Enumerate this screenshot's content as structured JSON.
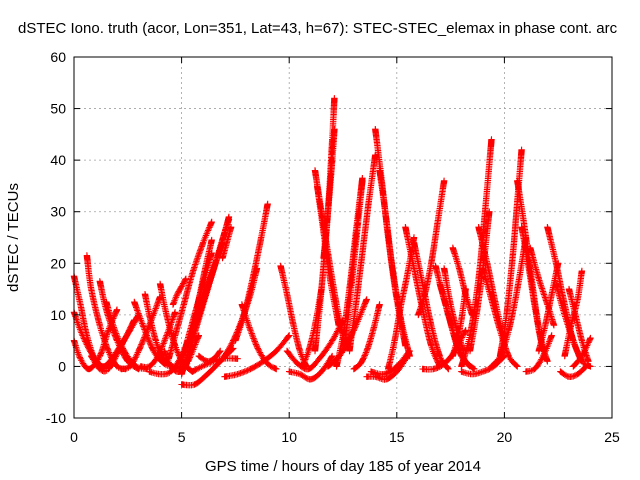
{
  "chart_data": {
    "type": "scatter",
    "title": "dSTEC Iono. truth (acor, Lon=351, Lat=43, h=67): STEC-STEC_elemax in phase cont. arc",
    "xlabel": "GPS time / hours of day 185 of year 2014",
    "ylabel": "dSTEC  / TECUs",
    "xlim": [
      0,
      25
    ],
    "ylim": [
      -10,
      60
    ],
    "xticks": [
      0,
      5,
      10,
      15,
      20,
      25
    ],
    "yticks": [
      -10,
      0,
      10,
      20,
      30,
      40,
      50,
      60
    ],
    "grid": true,
    "legend": "none",
    "marker": "+",
    "color": "#ff0000",
    "series": [
      {
        "x": [
          0.0,
          0.3,
          0.6,
          1.0,
          1.4
        ],
        "y": [
          17.5,
          12,
          6,
          1,
          -0.5
        ]
      },
      {
        "x": [
          0.0,
          0.4,
          0.9,
          1.4,
          2.0,
          2.6,
          3.0
        ],
        "y": [
          10.5,
          6,
          2,
          0,
          3,
          7,
          10
        ]
      },
      {
        "x": [
          0.0,
          0.3,
          0.7,
          1.2,
          1.6,
          2.0
        ],
        "y": [
          5,
          1.5,
          -0.5,
          2,
          7,
          11
        ]
      },
      {
        "x": [
          0.6,
          0.8,
          1.2,
          1.6,
          2.0,
          2.4
        ],
        "y": [
          21.5,
          15,
          8,
          3,
          0,
          -0.5
        ]
      },
      {
        "x": [
          0.8,
          1.2,
          1.6,
          2.2,
          2.8
        ],
        "y": [
          2,
          -0.5,
          -0.5,
          4,
          9
        ]
      },
      {
        "x": [
          1.2,
          1.5,
          2.0,
          2.5,
          3.0
        ],
        "y": [
          16.5,
          11,
          5,
          1,
          -0.5
        ]
      },
      {
        "x": [
          1.5,
          1.9,
          2.4,
          2.9,
          3.4
        ],
        "y": [
          12.5,
          7,
          2.5,
          0,
          -0.5
        ]
      },
      {
        "x": [
          2.2,
          2.6,
          3.0,
          3.5,
          4.0
        ],
        "y": [
          -0.5,
          0,
          3,
          8,
          13.5
        ]
      },
      {
        "x": [
          2.8,
          3.2,
          3.7,
          4.2,
          4.6
        ],
        "y": [
          12.5,
          8,
          3,
          0.5,
          0
        ]
      },
      {
        "x": [
          3.1,
          3.5,
          3.9,
          4.3,
          4.7
        ],
        "y": [
          0,
          0,
          2,
          6,
          10.5
        ]
      },
      {
        "x": [
          3.3,
          3.5,
          3.8,
          4.1,
          4.4
        ],
        "y": [
          14,
          10,
          5,
          2,
          0.5
        ]
      },
      {
        "x": [
          3.5,
          4.0,
          4.5,
          5.0,
          5.3
        ],
        "y": [
          -1,
          -1.5,
          -1,
          2,
          5
        ]
      },
      {
        "x": [
          4.0,
          4.3,
          4.7,
          5.1,
          5.5
        ],
        "y": [
          16,
          10,
          4,
          0.5,
          -1
        ]
      },
      {
        "x": [
          4.2,
          4.5,
          4.9,
          5.3,
          5.8
        ],
        "y": [
          3,
          0,
          -1,
          1,
          6
        ]
      },
      {
        "x": [
          4.4,
          4.7,
          5.1,
          5.5,
          6.0,
          6.4
        ],
        "y": [
          1.5,
          6,
          12,
          18,
          24,
          28
        ]
      },
      {
        "x": [
          4.6,
          4.8,
          5.0,
          5.2
        ],
        "y": [
          12,
          14,
          15.5,
          17
        ]
      },
      {
        "x": [
          4.9,
          5.2,
          5.6,
          6.0,
          6.4
        ],
        "y": [
          -0.5,
          4,
          10,
          16,
          22
        ]
      },
      {
        "x": [
          5.0,
          5.6,
          6.2,
          6.8,
          7.4
        ],
        "y": [
          -3.5,
          -3.5,
          -1.5,
          1,
          3.5
        ]
      },
      {
        "x": [
          5.0,
          5.5,
          6.0,
          6.5,
          7.0,
          7.2
        ],
        "y": [
          -1.5,
          5,
          12,
          19,
          26,
          28.5
        ]
      },
      {
        "x": [
          5.2,
          5.6,
          6.2,
          6.8,
          7.2
        ],
        "y": [
          0,
          7,
          15,
          23,
          29
        ]
      },
      {
        "x": [
          5.4,
          5.8,
          6.1,
          6.4
        ],
        "y": [
          5,
          13,
          19,
          24.5
        ]
      },
      {
        "x": [
          5.6,
          6.0,
          6.4,
          6.9
        ],
        "y": [
          8,
          13,
          18,
          24
        ]
      },
      {
        "x": [
          5.8,
          6.2,
          6.5,
          6.8
        ],
        "y": [
          2,
          1,
          1.5,
          3
        ]
      },
      {
        "x": [
          5.5,
          6.2,
          6.9,
          7.6
        ],
        "y": [
          -1,
          0.5,
          1.5,
          1.5
        ]
      },
      {
        "x": [
          7.8,
          8.2,
          8.6,
          9.0,
          9.4
        ],
        "y": [
          12,
          7,
          3,
          0.5,
          -0.5
        ]
      },
      {
        "x": [
          7.0,
          7.6,
          8.2,
          8.8,
          9.4,
          10.0
        ],
        "y": [
          -2,
          -1.5,
          -0.5,
          1,
          3,
          6
        ]
      },
      {
        "x": [
          7.0,
          7.4,
          7.8,
          8.2,
          8.5
        ],
        "y": [
          2,
          5,
          9,
          14,
          19
        ]
      },
      {
        "x": [
          7.5,
          7.9,
          8.3,
          8.7,
          9.0
        ],
        "y": [
          5,
          10,
          17,
          25,
          31.5
        ]
      },
      {
        "x": [
          6.9,
          7.1,
          7.3
        ],
        "y": [
          21,
          24,
          27
        ]
      },
      {
        "x": [
          9.6,
          9.9,
          10.2,
          10.5,
          10.8
        ],
        "y": [
          19.5,
          14,
          8,
          3,
          0
        ]
      },
      {
        "x": [
          10.0,
          10.5,
          11.0,
          11.5,
          12.0
        ],
        "y": [
          -1,
          -1.5,
          -2.5,
          -1,
          2
        ]
      },
      {
        "x": [
          9.9,
          10.4,
          10.9,
          11.4,
          12.0,
          12.5
        ],
        "y": [
          3,
          0.5,
          -0.5,
          1.5,
          5,
          9
        ]
      },
      {
        "x": [
          10.6,
          10.9,
          11.2,
          11.5
        ],
        "y": [
          0,
          3,
          8,
          15
        ]
      },
      {
        "x": [
          11.2,
          11.5,
          11.8,
          12.2,
          12.6
        ],
        "y": [
          38,
          30,
          22,
          12,
          4
        ]
      },
      {
        "x": [
          11.3,
          11.6,
          11.9,
          12.3
        ],
        "y": [
          35,
          26,
          17,
          8
        ]
      },
      {
        "x": [
          11.2,
          11.5,
          11.8,
          12.0,
          12.1
        ],
        "y": [
          3,
          15,
          30,
          44,
          52
        ]
      },
      {
        "x": [
          11.6,
          11.8,
          12.0,
          12.1
        ],
        "y": [
          21,
          30,
          40,
          46
        ]
      },
      {
        "x": [
          11.8,
          12.1,
          12.5,
          13.0,
          13.6
        ],
        "y": [
          0,
          1,
          3,
          7,
          13
        ]
      },
      {
        "x": [
          12.2,
          12.5,
          12.8,
          13.1,
          13.4
        ],
        "y": [
          0,
          6,
          15,
          26,
          36.5
        ]
      },
      {
        "x": [
          12.6,
          12.9,
          13.2,
          13.4
        ],
        "y": [
          5,
          16,
          28,
          36
        ]
      },
      {
        "x": [
          12.8,
          13.1,
          13.4,
          13.7,
          14.0
        ],
        "y": [
          3,
          12,
          22,
          32,
          41
        ]
      },
      {
        "x": [
          13.0,
          13.3,
          13.6,
          13.9,
          14.2
        ],
        "y": [
          -0.5,
          0.5,
          3,
          7,
          12
        ]
      },
      {
        "x": [
          13.6,
          14.0,
          14.5,
          15.0,
          15.5
        ],
        "y": [
          -2,
          -2,
          -2.5,
          -1,
          2
        ]
      },
      {
        "x": [
          14.0,
          14.3,
          14.6,
          15.0,
          15.4
        ],
        "y": [
          46,
          36,
          25,
          13,
          4
        ]
      },
      {
        "x": [
          14.2,
          14.5,
          14.8,
          15.2,
          15.6
        ],
        "y": [
          38,
          29,
          19,
          9,
          2
        ]
      },
      {
        "x": [
          14.6,
          14.9,
          15.2,
          15.5,
          15.8
        ],
        "y": [
          -0.5,
          5,
          12,
          18,
          25
        ]
      },
      {
        "x": [
          13.8,
          14.4,
          15.0,
          15.6
        ],
        "y": [
          -1,
          -1.5,
          0,
          3
        ]
      },
      {
        "x": [
          15.4,
          15.8,
          16.2,
          16.6,
          17.0
        ],
        "y": [
          27,
          19,
          11,
          4,
          0
        ]
      },
      {
        "x": [
          15.8,
          16.2,
          16.6,
          17.0,
          17.4
        ],
        "y": [
          24,
          16,
          8,
          2,
          -0.5
        ]
      },
      {
        "x": [
          16.0,
          16.3,
          16.6,
          16.9,
          17.2
        ],
        "y": [
          10,
          14,
          20,
          28,
          36
        ]
      },
      {
        "x": [
          16.8,
          17.2,
          17.6,
          18.0,
          18.4
        ],
        "y": [
          19.5,
          13,
          7,
          2,
          0
        ]
      },
      {
        "x": [
          17.0,
          17.4,
          17.8,
          18.2,
          18.6
        ],
        "y": [
          16,
          10,
          4,
          1,
          -0.5
        ]
      },
      {
        "x": [
          17.2,
          17.5,
          17.8,
          18.1
        ],
        "y": [
          19,
          12,
          7,
          3
        ]
      },
      {
        "x": [
          16.2,
          16.7,
          17.2,
          17.7,
          18.2
        ],
        "y": [
          -0.5,
          -0.5,
          0.5,
          3,
          7
        ]
      },
      {
        "x": [
          17.6,
          17.8,
          18.0,
          18.2
        ],
        "y": [
          2,
          5,
          9,
          15
        ]
      },
      {
        "x": [
          17.6,
          17.9,
          18.2,
          18.5
        ],
        "y": [
          23,
          19,
          14,
          10
        ]
      },
      {
        "x": [
          18.0,
          18.5,
          19.0,
          19.5,
          20.0
        ],
        "y": [
          -1,
          -1.5,
          -1,
          0,
          2
        ]
      },
      {
        "x": [
          18.0,
          18.4,
          18.8,
          19.1,
          19.4
        ],
        "y": [
          0,
          6,
          17,
          30,
          44
        ]
      },
      {
        "x": [
          18.4,
          18.7,
          19.0,
          19.3
        ],
        "y": [
          3,
          10,
          19,
          30
        ]
      },
      {
        "x": [
          18.8,
          19.2,
          19.6,
          20.0
        ],
        "y": [
          27,
          20,
          12,
          5
        ]
      },
      {
        "x": [
          19.0,
          19.4,
          19.8,
          20.2,
          20.6
        ],
        "y": [
          19,
          13,
          7,
          2,
          0
        ]
      },
      {
        "x": [
          19.4,
          19.8,
          20.2,
          20.6,
          21.0
        ],
        "y": [
          0,
          2,
          7,
          15,
          25
        ]
      },
      {
        "x": [
          19.8,
          20.1,
          20.4,
          20.6,
          20.8
        ],
        "y": [
          2,
          10,
          22,
          32,
          42
        ]
      },
      {
        "x": [
          20.6,
          20.9,
          21.2,
          21.5,
          21.8
        ],
        "y": [
          36,
          28,
          19,
          10,
          3
        ]
      },
      {
        "x": [
          20.8,
          21.1,
          21.4,
          21.7,
          22.0
        ],
        "y": [
          27,
          20,
          12,
          5,
          1
        ]
      },
      {
        "x": [
          21.0,
          21.4,
          21.8,
          22.2
        ],
        "y": [
          -1,
          -0.5,
          2,
          6
        ]
      },
      {
        "x": [
          21.2,
          21.6,
          22.0,
          22.3
        ],
        "y": [
          23,
          17,
          12,
          8
        ]
      },
      {
        "x": [
          21.6,
          21.9,
          22.2,
          22.5
        ],
        "y": [
          3,
          8,
          14,
          20
        ]
      },
      {
        "x": [
          22.0,
          22.4,
          22.8,
          23.2,
          23.6
        ],
        "y": [
          27,
          20,
          12,
          5,
          1
        ]
      },
      {
        "x": [
          22.4,
          22.8,
          23.2,
          23.6,
          24.0
        ],
        "y": [
          16,
          10,
          5,
          1,
          0
        ]
      },
      {
        "x": [
          22.6,
          23.0,
          23.4,
          23.8
        ],
        "y": [
          -1,
          -2,
          -1.5,
          0
        ]
      },
      {
        "x": [
          22.8,
          23.1,
          23.4,
          23.6
        ],
        "y": [
          2,
          8,
          13,
          18.5
        ]
      },
      {
        "x": [
          23.0,
          23.3,
          23.6,
          23.9
        ],
        "y": [
          15,
          10,
          5,
          1
        ]
      },
      {
        "x": [
          23.2,
          23.6,
          24.0
        ],
        "y": [
          0,
          2,
          5.5
        ]
      }
    ]
  }
}
